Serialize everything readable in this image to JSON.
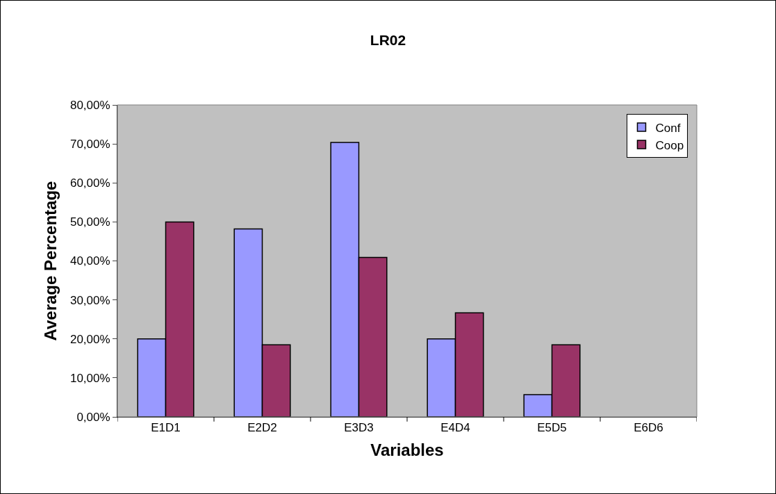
{
  "chart_data": {
    "type": "bar",
    "title": "LR02",
    "xlabel": "Variables",
    "ylabel": "Average Percentage",
    "categories": [
      "E1D1",
      "E2D2",
      "E3D3",
      "E4D4",
      "E5D5",
      "E6D6"
    ],
    "series": [
      {
        "name": "Conf",
        "color": "#9999ff",
        "values": [
          20,
          48.2,
          70.4,
          20,
          5.7,
          0
        ]
      },
      {
        "name": "Coop",
        "color": "#993366",
        "values": [
          50,
          18.5,
          40.9,
          26.7,
          18.5,
          0
        ]
      }
    ],
    "ylim": [
      0,
      80
    ],
    "yticks": [
      {
        "value": 0,
        "label": "0,00%"
      },
      {
        "value": 10,
        "label": "10,00%"
      },
      {
        "value": 20,
        "label": "20,00%"
      },
      {
        "value": 30,
        "label": "30,00%"
      },
      {
        "value": 40,
        "label": "40,00%"
      },
      {
        "value": 50,
        "label": "50,00%"
      },
      {
        "value": 60,
        "label": "60,00%"
      },
      {
        "value": 70,
        "label": "70,00%"
      },
      {
        "value": 80,
        "label": "80,00%"
      }
    ],
    "grid": false,
    "legend": "top right"
  }
}
